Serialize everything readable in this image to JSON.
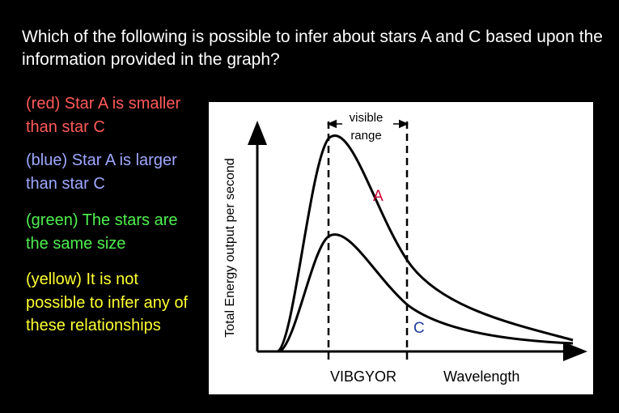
{
  "question": "Which of the following is possible to infer about stars A and C based upon the information provided in the graph?",
  "options": [
    {
      "color_name": "red",
      "text": "(red) Star A is smaller than star C",
      "color": "#ff5a5a"
    },
    {
      "color_name": "blue",
      "text": "(blue) Star A is larger than star C",
      "color": "#9fa8ff"
    },
    {
      "color_name": "green",
      "text": "(green) The stars are the same size",
      "color": "#4ff04f"
    },
    {
      "color_name": "yellow",
      "text": "(yellow) It is not possible to infer any of these relationships",
      "color": "#ffff33"
    }
  ],
  "graph": {
    "ylabel": "Total Energy output per second",
    "visible_label": "visible range",
    "curve_a_label": "A",
    "curve_c_label": "C",
    "spectrum_label": "VIBGYOR",
    "xlabel": "Wavelength",
    "colors": {
      "curve_a_label": "#cc0033",
      "curve_c_label": "#1f3b9e",
      "curves": "#000000",
      "background": "#ffffff"
    }
  }
}
